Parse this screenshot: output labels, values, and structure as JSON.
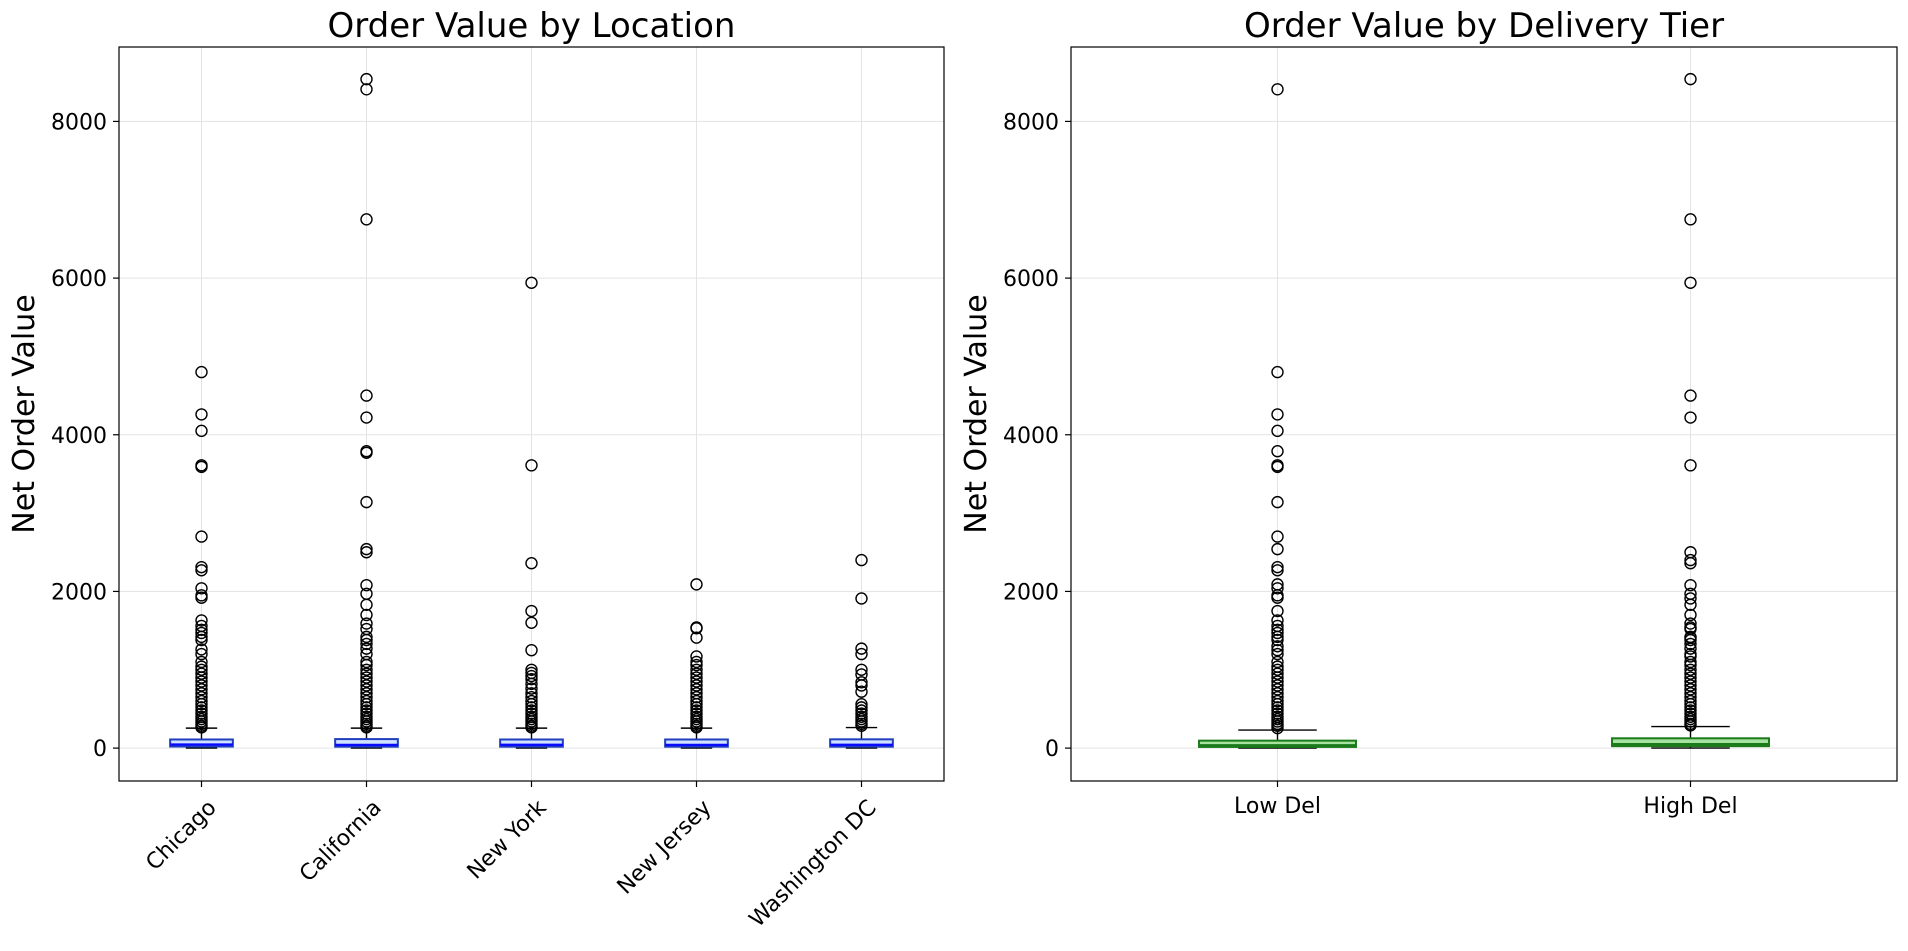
{
  "chart_data": [
    {
      "type": "box",
      "title": "Order Value by Location",
      "xlabel": "",
      "ylabel": "Net Order Value",
      "ylim": [
        -420,
        8950
      ],
      "yticks": [
        0,
        2000,
        4000,
        6000,
        8000
      ],
      "grid": true,
      "tick_rotation": -45,
      "box_fill": "#cfe2ff",
      "box_edge": "#1f3fbf",
      "median_color": "#0a0aff",
      "categories": [
        "Chicago",
        "California",
        "New York",
        "New Jersey",
        "Washington DC"
      ],
      "boxes": [
        {
          "q1": 20,
          "median": 45,
          "q3": 110,
          "whisker_low": 0,
          "whisker_high": 255,
          "outliers": [
            4800,
            4260,
            4050,
            3610,
            3590,
            2700,
            2310,
            2270,
            2040,
            1950,
            1920,
            1630,
            1560,
            1510,
            1470,
            1420,
            1380,
            1260,
            1200,
            1100,
            1040,
            1000,
            950,
            900,
            850,
            800,
            750,
            700,
            650,
            600,
            560,
            520,
            480,
            440,
            400,
            370,
            340,
            310,
            285,
            265
          ]
        },
        {
          "q1": 18,
          "median": 40,
          "q3": 115,
          "whisker_low": 0,
          "whisker_high": 255,
          "outliers": [
            8540,
            8410,
            6750,
            4500,
            4220,
            3790,
            3770,
            3140,
            2540,
            2500,
            2080,
            1970,
            1830,
            1700,
            1590,
            1520,
            1420,
            1380,
            1330,
            1270,
            1200,
            1100,
            1060,
            1000,
            950,
            900,
            850,
            800,
            750,
            700,
            650,
            600,
            560,
            520,
            480,
            440,
            400,
            370,
            340,
            310,
            285,
            265
          ]
        },
        {
          "q1": 18,
          "median": 42,
          "q3": 110,
          "whisker_low": 0,
          "whisker_high": 255,
          "outliers": [
            5940,
            3610,
            2360,
            1750,
            1600,
            1250,
            1000,
            960,
            920,
            880,
            820,
            760,
            700,
            650,
            600,
            560,
            520,
            480,
            440,
            400,
            370,
            340,
            310,
            285,
            265
          ]
        },
        {
          "q1": 18,
          "median": 40,
          "q3": 110,
          "whisker_low": 0,
          "whisker_high": 255,
          "outliers": [
            2090,
            1540,
            1530,
            1410,
            1170,
            1100,
            1060,
            1000,
            950,
            900,
            850,
            800,
            750,
            700,
            650,
            600,
            560,
            520,
            480,
            440,
            400,
            370,
            340,
            310,
            285,
            265
          ]
        },
        {
          "q1": 18,
          "median": 42,
          "q3": 112,
          "whisker_low": 0,
          "whisker_high": 262,
          "outliers": [
            2400,
            1910,
            1270,
            1200,
            1000,
            940,
            840,
            800,
            720,
            560,
            520,
            480,
            440,
            400,
            370,
            340,
            310,
            285
          ]
        }
      ]
    },
    {
      "type": "box",
      "title": "Order Value by Delivery Tier",
      "xlabel": "",
      "ylabel": "Net Order Value",
      "ylim": [
        -420,
        8950
      ],
      "yticks": [
        0,
        2000,
        4000,
        6000,
        8000
      ],
      "grid": true,
      "tick_rotation": 0,
      "box_fill": "#a6e3a1",
      "box_edge": "#1a7a1a",
      "median_color": "#1a7a1a",
      "categories": [
        "Low Del",
        "High Del"
      ],
      "boxes": [
        {
          "q1": 15,
          "median": 35,
          "q3": 95,
          "whisker_low": 0,
          "whisker_high": 230,
          "outliers": [
            8410,
            4800,
            4260,
            4050,
            3790,
            3610,
            3590,
            3140,
            2700,
            2540,
            2310,
            2270,
            2090,
            2040,
            1950,
            1920,
            1750,
            1630,
            1560,
            1510,
            1470,
            1420,
            1380,
            1300,
            1250,
            1200,
            1100,
            1040,
            1000,
            950,
            900,
            850,
            800,
            750,
            700,
            650,
            600,
            560,
            520,
            480,
            440,
            400,
            370,
            340,
            310,
            285,
            255
          ]
        },
        {
          "q1": 25,
          "median": 50,
          "q3": 125,
          "whisker_low": 0,
          "whisker_high": 275,
          "outliers": [
            8540,
            6750,
            5940,
            4500,
            4220,
            3610,
            2500,
            2400,
            2360,
            2080,
            1970,
            1910,
            1830,
            1700,
            1590,
            1540,
            1520,
            1420,
            1410,
            1380,
            1330,
            1270,
            1200,
            1170,
            1100,
            1060,
            1000,
            950,
            900,
            850,
            800,
            750,
            700,
            650,
            600,
            560,
            520,
            480,
            440,
            400,
            370,
            340,
            310,
            290
          ]
        }
      ]
    }
  ]
}
